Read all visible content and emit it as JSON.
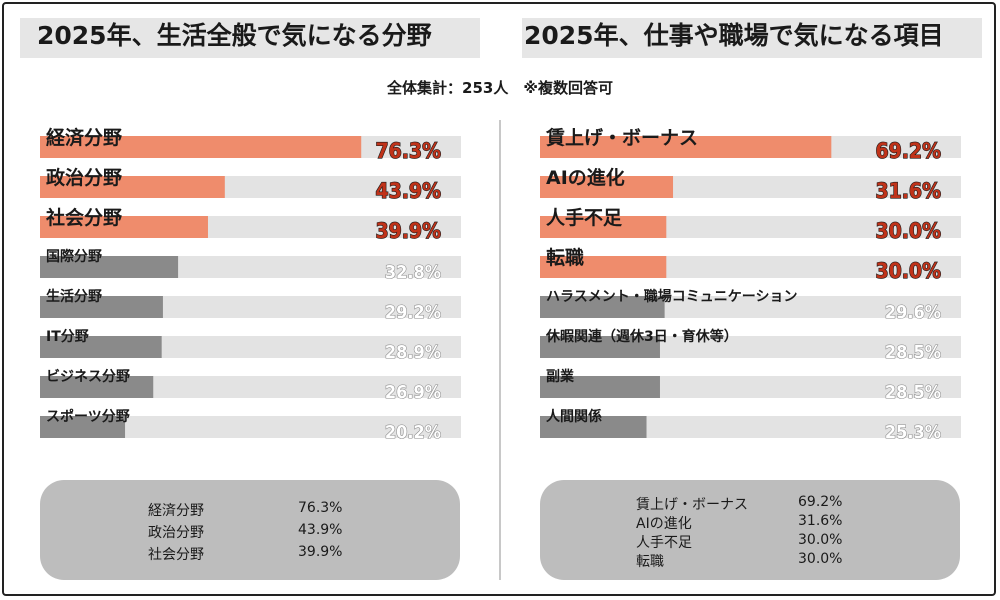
{
  "survey_note": "全体集計：253人　※複数回答可",
  "chart_data": [
    {
      "type": "bar",
      "orientation": "horizontal",
      "title": "2025年、生活全般で気になる分野",
      "xlim": [
        0,
        100
      ],
      "unit": "%",
      "categories": [
        "経済分野",
        "政治分野",
        "社会分野",
        "国際分野",
        "生活分野",
        "IT分野",
        "ビジネス分野",
        "スポーツ分野"
      ],
      "values": [
        76.3,
        43.9,
        39.9,
        32.8,
        29.2,
        28.9,
        26.9,
        20.2
      ],
      "value_labels": [
        "76.3%",
        "43.9%",
        "39.9%",
        "32.8%",
        "29.2%",
        "28.9%",
        "26.9%",
        "20.2%"
      ],
      "highlight_top": 3
    },
    {
      "type": "bar",
      "orientation": "horizontal",
      "title": "2025年、仕事や職場で気になる項目",
      "xlim": [
        0,
        100
      ],
      "unit": "%",
      "categories": [
        "賃上げ・ボーナス",
        "AIの進化",
        "人手不足",
        "転職",
        "ハラスメント・職場コミュニケーション",
        "休暇関連（週休3日・育休等）",
        "副業",
        "人間関係"
      ],
      "values": [
        69.2,
        31.6,
        30.0,
        30.0,
        29.6,
        28.5,
        28.5,
        25.3
      ],
      "value_labels": [
        "69.2%",
        "31.6%",
        "30.0%",
        "30.0%",
        "29.6%",
        "28.5%",
        "28.5%",
        "25.3%"
      ],
      "highlight_top": 4
    }
  ],
  "colors": {
    "highlight_bar": "#ef8c6c",
    "normal_bar": "#8a8a8a",
    "track": "#e3e3e3",
    "highlight_label": "#c0331a",
    "normal_label": "#ffffff",
    "label_outline_dark": "#1a1a1a",
    "label_outline_light": "#8a8a8a"
  },
  "summaries": [
    {
      "rows": [
        {
          "label": "経済分野",
          "value": "76.3%"
        },
        {
          "label": "政治分野",
          "value": "43.9%"
        },
        {
          "label": "社会分野",
          "value": "39.9%"
        }
      ]
    },
    {
      "rows": [
        {
          "label": "賃上げ・ボーナス",
          "value": "69.2%"
        },
        {
          "label": "AIの進化",
          "value": "31.6%"
        },
        {
          "label": "人手不足",
          "value": "30.0%"
        },
        {
          "label": "転職",
          "value": "30.0%"
        }
      ]
    }
  ]
}
